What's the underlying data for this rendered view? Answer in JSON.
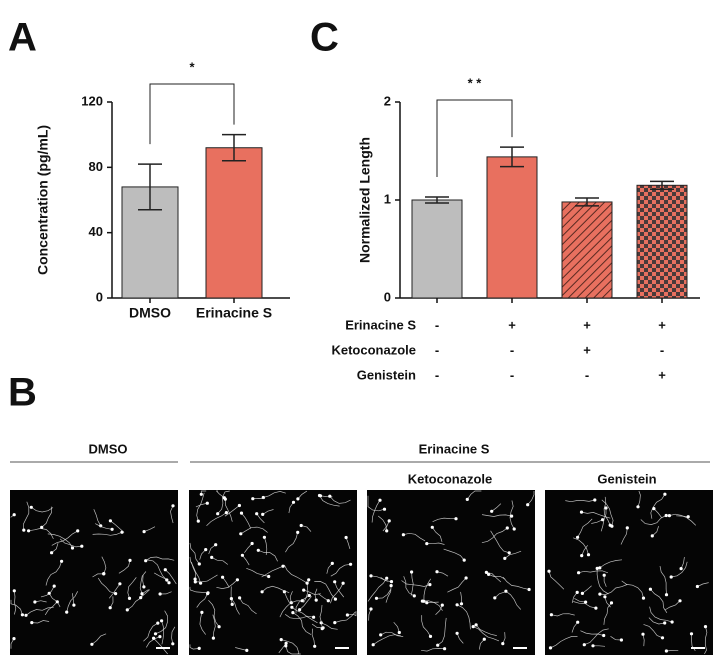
{
  "chart_data": [
    {
      "type": "bar",
      "panel_label": "A",
      "ylabel": "Concentration (pg/mL)",
      "categories": [
        "DMSO",
        "Erinacine S"
      ],
      "values": [
        68,
        92
      ],
      "errors": [
        14,
        8
      ],
      "colors": [
        "#bdbdbd",
        "#e8705f"
      ],
      "patterns": [
        "solid",
        "solid"
      ],
      "ylim": [
        0,
        120
      ],
      "yticks": [
        0,
        40,
        80,
        120
      ],
      "significance": {
        "label": "*",
        "between": [
          0,
          1
        ]
      }
    },
    {
      "type": "bar",
      "panel_label": "C",
      "ylabel": "Normalized Length",
      "values": [
        1.0,
        1.44,
        0.98,
        1.15
      ],
      "errors": [
        0.03,
        0.1,
        0.04,
        0.04
      ],
      "colors": [
        "#bdbdbd",
        "#e8705f",
        "#e8705f",
        "#e8705f"
      ],
      "patterns": [
        "solid",
        "solid",
        "hatch",
        "checker"
      ],
      "ylim": [
        0,
        2
      ],
      "yticks": [
        0,
        1,
        2
      ],
      "significance": {
        "label": "* *",
        "between": [
          0,
          1
        ]
      },
      "conditions": [
        {
          "name": "Erinacine S",
          "values": [
            "-",
            "+",
            "+",
            "+"
          ]
        },
        {
          "name": "Ketoconazole",
          "values": [
            "-",
            "-",
            "+",
            "-"
          ]
        },
        {
          "name": "Genistein",
          "values": [
            "-",
            "-",
            "-",
            "+"
          ]
        }
      ]
    }
  ],
  "panel_b": {
    "label": "B",
    "group_labels": [
      "DMSO",
      "Erinacine S"
    ],
    "image_labels": [
      "Ketoconazole",
      "Genistein"
    ]
  }
}
